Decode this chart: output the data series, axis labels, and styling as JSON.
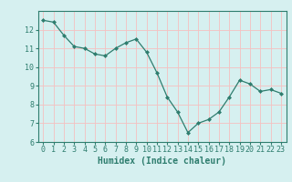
{
  "x": [
    0,
    1,
    2,
    3,
    4,
    5,
    6,
    7,
    8,
    9,
    10,
    11,
    12,
    13,
    14,
    15,
    16,
    17,
    18,
    19,
    20,
    21,
    22,
    23
  ],
  "y": [
    12.5,
    12.4,
    11.7,
    11.1,
    11.0,
    10.7,
    10.6,
    11.0,
    11.3,
    11.5,
    10.8,
    9.7,
    8.4,
    7.6,
    6.5,
    7.0,
    7.2,
    7.6,
    8.4,
    9.3,
    9.1,
    8.7,
    8.8,
    8.6
  ],
  "line_color": "#2e7d6e",
  "marker": "D",
  "marker_size": 2,
  "bg_color": "#d6f0f0",
  "grid_color": "#f5c0c0",
  "xlabel": "Humidex (Indice chaleur)",
  "ylim": [
    6,
    13
  ],
  "xlim": [
    -0.5,
    23.5
  ],
  "yticks": [
    6,
    7,
    8,
    9,
    10,
    11,
    12
  ],
  "xticks": [
    0,
    1,
    2,
    3,
    4,
    5,
    6,
    7,
    8,
    9,
    10,
    11,
    12,
    13,
    14,
    15,
    16,
    17,
    18,
    19,
    20,
    21,
    22,
    23
  ],
  "tick_color": "#2e7d6e",
  "label_color": "#2e7d6e",
  "font_size": 7
}
